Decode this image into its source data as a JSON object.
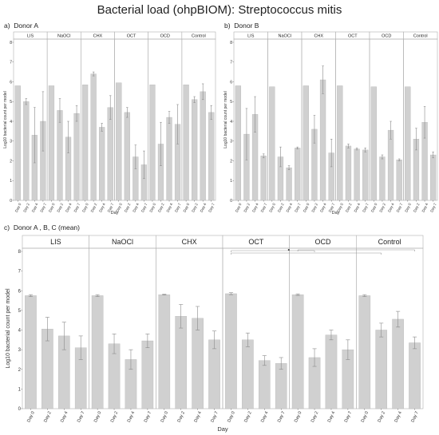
{
  "figure": {
    "title": "Bacterial load (ohpBIOM): Streptococcus mitis",
    "colors": {
      "bar": "#d0d0d0",
      "bar_edge": "#b8b8b8",
      "strip": "#ffffff",
      "frame": "#b0b0b0",
      "error": "#8a8a8a"
    }
  },
  "panels": [
    {
      "letter": "a)",
      "caption": "Donor A"
    },
    {
      "letter": "b)",
      "caption": "Donor B"
    },
    {
      "letter": "c)",
      "caption": "Donor A , B, C (mean)"
    }
  ],
  "chart_data": [
    {
      "type": "bar",
      "panel": "a",
      "facets": [
        "LIS",
        "NaOCl",
        "CHX",
        "OCT",
        "OCD",
        "Control"
      ],
      "categories": [
        "Day 0",
        "Day 2",
        "Day 4",
        "Day 7"
      ],
      "xlabel": "Day",
      "ylabel": "Log10 bacterial count per model",
      "ylim": [
        0,
        8
      ],
      "yticks": [
        "0",
        "1",
        "2",
        "3",
        "4",
        "5",
        "6",
        "7",
        "8"
      ],
      "values": [
        [
          5.8,
          5.0,
          3.3,
          4.0
        ],
        [
          5.8,
          4.55,
          3.2,
          4.4
        ],
        [
          5.85,
          6.4,
          3.7,
          4.7
        ],
        [
          5.95,
          4.45,
          2.2,
          1.8
        ],
        [
          5.85,
          2.85,
          4.2,
          3.85
        ],
        [
          5.85,
          5.1,
          5.5,
          4.45
        ]
      ],
      "errors": [
        [
          0,
          0.15,
          1.4,
          1.5
        ],
        [
          0,
          0.6,
          0.8,
          0.4
        ],
        [
          0,
          0.1,
          0.2,
          0.6
        ],
        [
          0,
          0.25,
          0.6,
          0.7
        ],
        [
          0,
          1.1,
          0.3,
          1.0
        ],
        [
          0,
          0.15,
          0.4,
          0.35
        ]
      ]
    },
    {
      "type": "bar",
      "panel": "b",
      "facets": [
        "LIS",
        "NaOCl",
        "CHX",
        "OCT",
        "OCD",
        "Control"
      ],
      "categories": [
        "Day 0",
        "Day 2",
        "Day 4",
        "Day 7"
      ],
      "xlabel": "Day",
      "ylabel": "Log10 bacterial count per model",
      "ylim": [
        0,
        8
      ],
      "yticks": [
        "0",
        "1",
        "2",
        "3",
        "4",
        "5",
        "6",
        "7",
        "8"
      ],
      "values": [
        [
          5.8,
          3.35,
          4.35,
          2.25
        ],
        [
          5.75,
          2.2,
          1.65,
          2.65
        ],
        [
          5.8,
          3.6,
          6.1,
          2.4
        ],
        [
          5.8,
          2.75,
          2.6,
          2.55
        ],
        [
          5.75,
          2.2,
          3.55,
          2.05
        ],
        [
          5.75,
          3.1,
          3.95,
          2.3
        ]
      ],
      "errors": [
        [
          0,
          1.3,
          0.9,
          0.1
        ],
        [
          0,
          0.5,
          0.1,
          0.05
        ],
        [
          0,
          0.7,
          0.7,
          0.7
        ],
        [
          0,
          0.1,
          0.05,
          0.1
        ],
        [
          0,
          0.1,
          0.45,
          0.05
        ],
        [
          0,
          0.55,
          0.8,
          0.15
        ]
      ]
    },
    {
      "type": "bar",
      "panel": "c",
      "facets": [
        "LIS",
        "NaOCl",
        "CHX",
        "OCT",
        "OCD",
        "Control"
      ],
      "categories": [
        "Day 0",
        "Day 2",
        "Day 4",
        "Day 7"
      ],
      "xlabel": "Day",
      "ylabel": "Log10 bacterial count per model",
      "ylim": [
        0,
        8
      ],
      "yticks": [
        "0",
        "1",
        "2",
        "3",
        "4",
        "5",
        "6",
        "7",
        "8"
      ],
      "values": [
        [
          5.75,
          4.05,
          3.7,
          3.1
        ],
        [
          5.75,
          3.3,
          2.5,
          3.45
        ],
        [
          5.8,
          4.7,
          4.6,
          3.5
        ],
        [
          5.85,
          3.5,
          2.45,
          2.3
        ],
        [
          5.8,
          2.6,
          3.75,
          3.0
        ],
        [
          5.75,
          4.0,
          4.55,
          3.35
        ]
      ],
      "errors": [
        [
          0.05,
          0.6,
          0.7,
          0.6
        ],
        [
          0.05,
          0.5,
          0.5,
          0.35
        ],
        [
          0.02,
          0.6,
          0.6,
          0.45
        ],
        [
          0.05,
          0.35,
          0.25,
          0.3
        ],
        [
          0.04,
          0.45,
          0.25,
          0.5
        ],
        [
          0.05,
          0.35,
          0.4,
          0.3
        ]
      ],
      "significance_brackets": [
        {
          "facet": "OCT",
          "from_day": "Day 0",
          "to_facet": "OCD",
          "to_day": "Day 2"
        },
        {
          "facet": "OCT",
          "from_day": "Day 0",
          "to_facet": "Control",
          "to_day": "Day 2"
        },
        {
          "facet": "OCD",
          "from_day": "Day 0",
          "to_facet": "Control",
          "to_day": "Day 7"
        }
      ]
    }
  ]
}
